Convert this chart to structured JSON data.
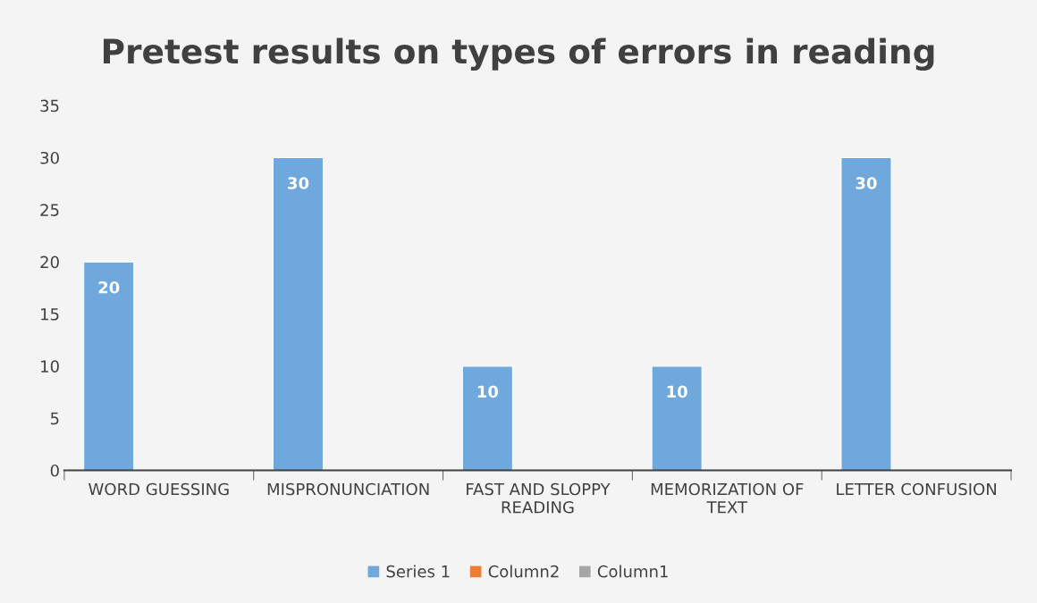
{
  "chart_data": {
    "type": "bar",
    "title": "Pretest results on types of errors in reading",
    "categories": [
      "WORD GUESSING",
      "MISPRONUNCIATION",
      "FAST AND SLOPPY READING",
      "MEMORIZATION OF TEXT",
      "LETTER CONFUSION"
    ],
    "series": [
      {
        "name": "Series 1",
        "color": "#6fa8dc",
        "values": [
          20,
          30,
          10,
          10,
          30
        ]
      },
      {
        "name": "Column2",
        "color": "#ed7d31",
        "values": [
          null,
          null,
          null,
          null,
          null
        ]
      },
      {
        "name": "Column1",
        "color": "#a5a5a5",
        "values": [
          null,
          null,
          null,
          null,
          null
        ]
      }
    ],
    "ylim": [
      0,
      35
    ],
    "yticks": [
      0,
      5,
      10,
      15,
      20,
      25,
      30,
      35
    ],
    "grid": false,
    "legend": "bottom",
    "data_labels": true
  }
}
